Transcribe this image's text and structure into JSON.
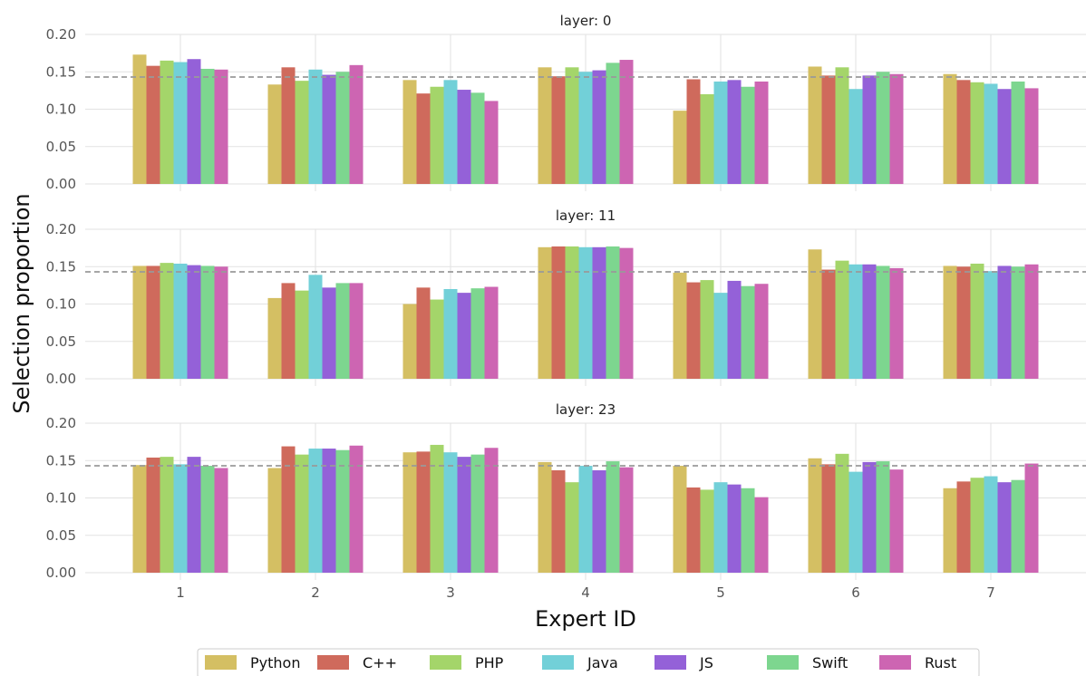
{
  "chart_data": {
    "type": "bar",
    "xlabel": "Expert ID",
    "ylabel": "Selection proportion",
    "categories": [
      "1",
      "2",
      "3",
      "4",
      "5",
      "6",
      "7"
    ],
    "ylim": [
      0,
      0.2
    ],
    "yticks": [
      "0.00",
      "0.05",
      "0.10",
      "0.15",
      "0.20"
    ],
    "reference_line": 0.143,
    "grid": true,
    "legend_position": "bottom",
    "series_names": [
      "Python",
      "C++",
      "PHP",
      "Java",
      "JS",
      "Swift",
      "Rust"
    ],
    "colors": [
      "#d4bf63",
      "#cf6a5c",
      "#a4d56a",
      "#72d0d8",
      "#9461d8",
      "#7dd68f",
      "#cd65b2"
    ],
    "panels": [
      {
        "title": "layer: 0",
        "values": [
          [
            0.173,
            0.158,
            0.165,
            0.163,
            0.167,
            0.154,
            0.153
          ],
          [
            0.133,
            0.156,
            0.138,
            0.153,
            0.146,
            0.15,
            0.159
          ],
          [
            0.139,
            0.121,
            0.13,
            0.139,
            0.126,
            0.122,
            0.111
          ],
          [
            0.156,
            0.144,
            0.156,
            0.15,
            0.152,
            0.162,
            0.166
          ],
          [
            0.098,
            0.14,
            0.12,
            0.137,
            0.139,
            0.13,
            0.137
          ],
          [
            0.157,
            0.145,
            0.156,
            0.127,
            0.145,
            0.15,
            0.147
          ],
          [
            0.147,
            0.139,
            0.136,
            0.134,
            0.127,
            0.137,
            0.128
          ]
        ]
      },
      {
        "title": "layer: 11",
        "values": [
          [
            0.151,
            0.151,
            0.155,
            0.154,
            0.152,
            0.151,
            0.15
          ],
          [
            0.108,
            0.128,
            0.118,
            0.139,
            0.122,
            0.128,
            0.128
          ],
          [
            0.1,
            0.122,
            0.106,
            0.12,
            0.115,
            0.121,
            0.123
          ],
          [
            0.176,
            0.177,
            0.177,
            0.176,
            0.176,
            0.177,
            0.175
          ],
          [
            0.142,
            0.129,
            0.132,
            0.115,
            0.131,
            0.124,
            0.127
          ],
          [
            0.173,
            0.146,
            0.158,
            0.153,
            0.153,
            0.151,
            0.148
          ],
          [
            0.151,
            0.15,
            0.154,
            0.144,
            0.151,
            0.15,
            0.153
          ]
        ]
      },
      {
        "title": "layer: 23",
        "values": [
          [
            0.144,
            0.154,
            0.155,
            0.145,
            0.155,
            0.143,
            0.14
          ],
          [
            0.14,
            0.169,
            0.158,
            0.166,
            0.166,
            0.164,
            0.17
          ],
          [
            0.161,
            0.162,
            0.171,
            0.161,
            0.155,
            0.158,
            0.167
          ],
          [
            0.148,
            0.137,
            0.121,
            0.143,
            0.137,
            0.149,
            0.141
          ],
          [
            0.143,
            0.114,
            0.111,
            0.121,
            0.118,
            0.113,
            0.101
          ],
          [
            0.153,
            0.145,
            0.159,
            0.135,
            0.148,
            0.149,
            0.138
          ],
          [
            0.113,
            0.122,
            0.127,
            0.129,
            0.121,
            0.124,
            0.146
          ]
        ]
      }
    ]
  }
}
